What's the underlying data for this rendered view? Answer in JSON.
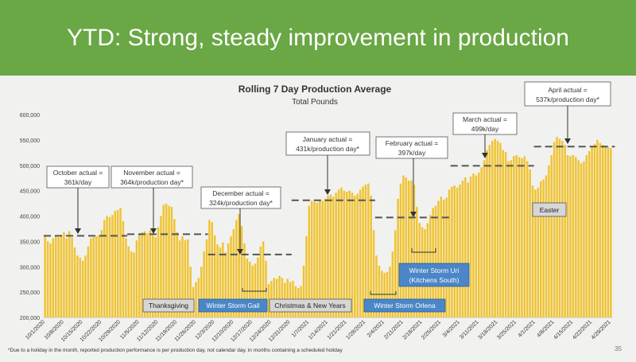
{
  "slide": {
    "title": "YTD:  Strong, steady improvement in production",
    "footnote": "*Due to a holiday in the month, reported production performance is per production day, not calendar day, in months containing a scheduled holiday",
    "page_number": "35"
  },
  "colors": {
    "banner": "#6aa745",
    "bar": "#f0c330",
    "target_line": "#555555",
    "gray_box": "#d6d6d6",
    "blue_box": "#4a86c8"
  },
  "chart_data": {
    "type": "bar",
    "title": "Rolling 7 Day Production Average",
    "subtitle": "Total Pounds",
    "ylim": [
      200000,
      600000
    ],
    "yticks": [
      200000,
      250000,
      300000,
      350000,
      400000,
      450000,
      500000,
      550000,
      600000
    ],
    "ytick_labels": [
      "200,000",
      "250,000",
      "300,000",
      "350,000",
      "400,000",
      "450,000",
      "500,000",
      "550,000",
      "600,000"
    ],
    "x_tick_labels": [
      "10/1/2020",
      "10/8/2020",
      "10/15/2020",
      "10/22/2020",
      "10/29/2020",
      "11/5/2020",
      "11/12/2020",
      "11/19/2020",
      "11/26/2020",
      "12/3/2020",
      "12/10/2020",
      "12/17/2020",
      "12/24/2020",
      "12/31/2020",
      "1/7/2021",
      "1/14/2021",
      "1/21/2021",
      "1/28/2021",
      "2/4/2021",
      "2/11/2021",
      "2/18/2021",
      "2/25/2021",
      "3/4/2021",
      "3/11/2021",
      "3/18/2021",
      "3/25/2021",
      "4/1/2021",
      "4/8/2021",
      "4/15/2021",
      "4/22/2021",
      "4/29/2021"
    ],
    "values": [
      362000,
      350000,
      346000,
      356000,
      362000,
      358000,
      362000,
      368000,
      356000,
      370000,
      358000,
      338000,
      322000,
      318000,
      312000,
      322000,
      340000,
      356000,
      358000,
      360000,
      362000,
      372000,
      392000,
      400000,
      398000,
      402000,
      410000,
      412000,
      416000,
      390000,
      356000,
      340000,
      330000,
      328000,
      352000,
      364000,
      368000,
      370000,
      366000,
      372000,
      362000,
      358000,
      378000,
      400000,
      422000,
      424000,
      420000,
      418000,
      394000,
      368000,
      352000,
      360000,
      352000,
      354000,
      300000,
      260000,
      270000,
      278000,
      300000,
      330000,
      354000,
      392000,
      388000,
      362000,
      344000,
      338000,
      348000,
      328000,
      346000,
      360000,
      374000,
      392000,
      404000,
      380000,
      346000,
      316000,
      310000,
      302000,
      306000,
      318000,
      340000,
      350000,
      312000,
      266000,
      272000,
      278000,
      276000,
      282000,
      278000,
      268000,
      276000,
      270000,
      272000,
      262000,
      258000,
      262000,
      302000,
      360000,
      420000,
      430000,
      428000,
      426000,
      432000,
      430000,
      434000,
      440000,
      442000,
      438000,
      446000,
      452000,
      456000,
      450000,
      448000,
      450000,
      446000,
      440000,
      444000,
      452000,
      458000,
      462000,
      464000,
      440000,
      372000,
      322000,
      302000,
      292000,
      288000,
      290000,
      300000,
      330000,
      372000,
      434000,
      464000,
      480000,
      476000,
      470000,
      470000,
      462000,
      418000,
      386000,
      378000,
      374000,
      386000,
      402000,
      416000,
      420000,
      430000,
      438000,
      432000,
      436000,
      452000,
      458000,
      460000,
      456000,
      462000,
      470000,
      476000,
      466000,
      478000,
      484000,
      480000,
      486000,
      496000,
      510000,
      530000,
      540000,
      548000,
      552000,
      548000,
      544000,
      530000,
      526000,
      508000,
      510000,
      518000,
      520000,
      516000,
      514000,
      518000,
      508000,
      492000,
      460000,
      452000,
      456000,
      468000,
      472000,
      480000,
      500000,
      520000,
      546000,
      556000,
      552000,
      548000,
      540000,
      520000,
      518000,
      520000,
      516000,
      510000,
      504000,
      508000,
      520000,
      528000,
      536000,
      542000,
      550000,
      544000,
      540000,
      538000,
      536000,
      534000
    ],
    "targets": [
      {
        "label": "October actual = 361k/day",
        "value": 361000
      },
      {
        "label": "November actual = 364k/production day*",
        "value": 364000
      },
      {
        "label": "December actual = 324k/production day*",
        "value": 324000
      },
      {
        "label": "January actual = 431k/production day*",
        "value": 431000
      },
      {
        "label": "February actual = 397k/day",
        "value": 397000
      },
      {
        "label": "March actual = 499k/day",
        "value": 499000
      },
      {
        "label": "April actual = 537k/production day*",
        "value": 537000
      }
    ],
    "callouts": {
      "october": [
        "October actual =",
        "361k/day"
      ],
      "november": [
        "November actual =",
        "364k/production day*"
      ],
      "december": [
        "December actual =",
        "324k/production day*"
      ],
      "january": [
        "January actual =",
        "431k/production day*"
      ],
      "february": [
        "February actual =",
        "397k/day"
      ],
      "march": [
        "March actual =",
        "499k/day"
      ],
      "april": [
        "April actual =",
        "537k/production day*"
      ]
    },
    "events": {
      "thanksgiving": "Thanksgiving",
      "winter_storm_gail": "Winter Storm Gail",
      "christmas_new_years": "Christmas & New Years",
      "winter_storm_orlena": "Winter Storm Orlena",
      "winter_storm_uri": [
        "Winter Storm Uri",
        "(Kitchens South)"
      ],
      "easter": "Easter"
    }
  }
}
